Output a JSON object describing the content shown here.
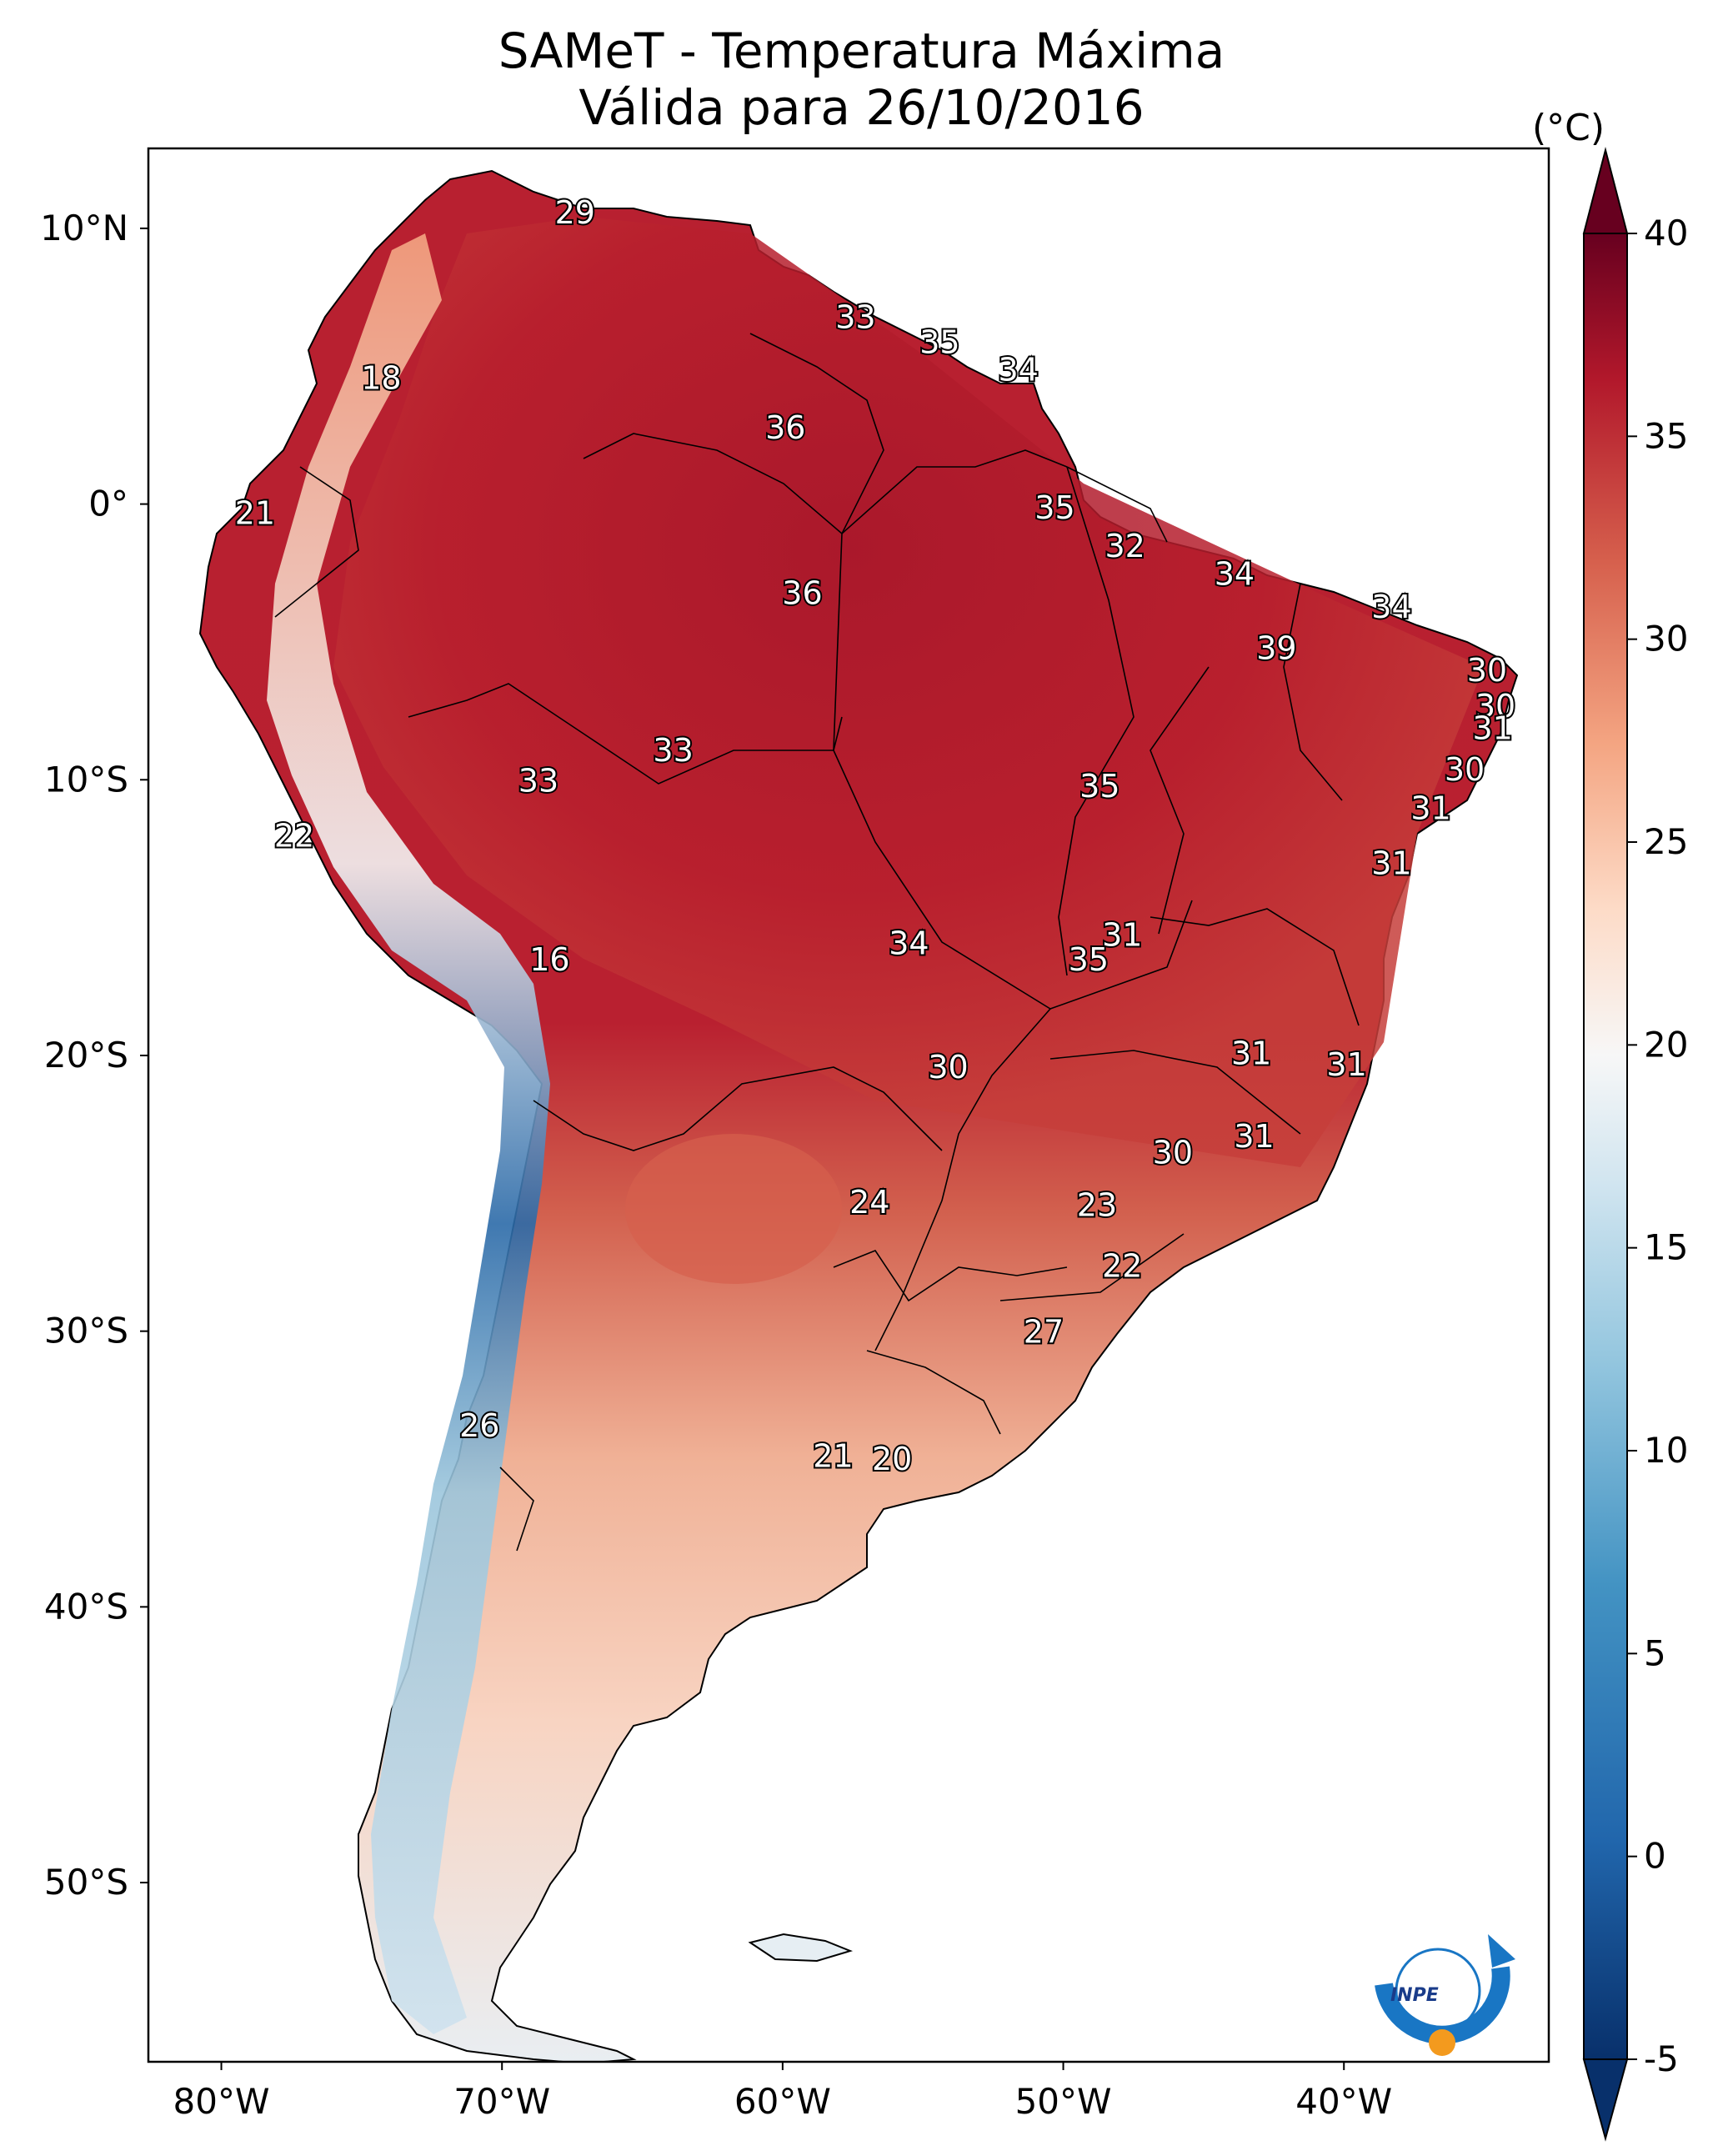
{
  "title": {
    "line1": "SAMeT - Temperatura Máxima",
    "line2": "Válida para 26/10/2016"
  },
  "colorbar": {
    "unit": "(°C)",
    "min": -5,
    "max": 40,
    "ticks": [
      "40",
      "35",
      "30",
      "25",
      "20",
      "15",
      "10",
      "5",
      "0",
      "-5"
    ],
    "tick_values": [
      40,
      35,
      30,
      25,
      20,
      15,
      10,
      5,
      0,
      -5
    ],
    "colors": [
      "#08306b",
      "#2166ac",
      "#4393c3",
      "#92c5de",
      "#d1e5f0",
      "#f7f7f7",
      "#fddbc7",
      "#f4a582",
      "#d6604d",
      "#b2182b",
      "#67001f"
    ]
  },
  "axes": {
    "lat_labels": [
      "10°N",
      "0°",
      "10°S",
      "20°S",
      "30°S",
      "40°S",
      "50°S"
    ],
    "lat_values": [
      10,
      0,
      -10,
      -20,
      -30,
      -40,
      -50
    ],
    "lon_labels": [
      "80°W",
      "70°W",
      "60°W",
      "50°W",
      "40°W"
    ],
    "lon_values": [
      -80,
      -70,
      -60,
      -50,
      -40
    ],
    "extent": {
      "lon_min": -82.6,
      "lon_max": -32.7,
      "lat_min": -56.5,
      "lat_max": 12.9
    }
  },
  "station_labels": [
    {
      "value": "29",
      "lon": -67.4,
      "lat": 10.6
    },
    {
      "value": "18",
      "lon": -74.3,
      "lat": 4.6
    },
    {
      "value": "33",
      "lon": -57.4,
      "lat": 6.8
    },
    {
      "value": "35",
      "lon": -54.4,
      "lat": 5.9
    },
    {
      "value": "34",
      "lon": -51.6,
      "lat": 4.9
    },
    {
      "value": "36",
      "lon": -59.9,
      "lat": 2.8
    },
    {
      "value": "21",
      "lon": -78.8,
      "lat": -0.3
    },
    {
      "value": "35",
      "lon": -50.3,
      "lat": -0.1
    },
    {
      "value": "32",
      "lon": -47.8,
      "lat": -1.5
    },
    {
      "value": "36",
      "lon": -59.3,
      "lat": -3.2
    },
    {
      "value": "34",
      "lon": -43.9,
      "lat": -2.5
    },
    {
      "value": "34",
      "lon": -38.3,
      "lat": -3.7
    },
    {
      "value": "39",
      "lon": -42.4,
      "lat": -5.2
    },
    {
      "value": "30",
      "lon": -34.9,
      "lat": -6.0
    },
    {
      "value": "30",
      "lon": -34.6,
      "lat": -7.3
    },
    {
      "value": "31",
      "lon": -34.7,
      "lat": -8.1
    },
    {
      "value": "33",
      "lon": -63.9,
      "lat": -8.9
    },
    {
      "value": "33",
      "lon": -68.7,
      "lat": -10.0
    },
    {
      "value": "35",
      "lon": -48.7,
      "lat": -10.2
    },
    {
      "value": "30",
      "lon": -35.7,
      "lat": -9.6
    },
    {
      "value": "31",
      "lon": -36.9,
      "lat": -11.0
    },
    {
      "value": "22",
      "lon": -77.4,
      "lat": -12.0
    },
    {
      "value": "31",
      "lon": -38.3,
      "lat": -13.0
    },
    {
      "value": "31",
      "lon": -47.9,
      "lat": -15.6
    },
    {
      "value": "34",
      "lon": -55.5,
      "lat": -15.9
    },
    {
      "value": "35",
      "lon": -49.1,
      "lat": -16.5
    },
    {
      "value": "16",
      "lon": -68.3,
      "lat": -16.5
    },
    {
      "value": "31",
      "lon": -43.3,
      "lat": -19.9
    },
    {
      "value": "30",
      "lon": -54.1,
      "lat": -20.4
    },
    {
      "value": "31",
      "lon": -39.9,
      "lat": -20.3
    },
    {
      "value": "31",
      "lon": -43.2,
      "lat": -22.9
    },
    {
      "value": "30",
      "lon": -46.1,
      "lat": -23.5
    },
    {
      "value": "24",
      "lon": -56.9,
      "lat": -25.3
    },
    {
      "value": "23",
      "lon": -48.8,
      "lat": -25.4
    },
    {
      "value": "22",
      "lon": -47.9,
      "lat": -27.6
    },
    {
      "value": "27",
      "lon": -50.7,
      "lat": -30.0
    },
    {
      "value": "26",
      "lon": -70.8,
      "lat": -33.4
    },
    {
      "value": "21",
      "lon": -58.2,
      "lat": -34.5
    },
    {
      "value": "20",
      "lon": -56.1,
      "lat": -34.6
    }
  ],
  "logo": {
    "text": "INPE"
  }
}
